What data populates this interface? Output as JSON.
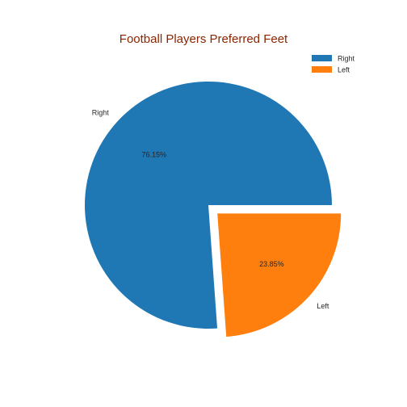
{
  "chart_data": {
    "type": "pie",
    "title": "Football Players Preferred Feet",
    "title_color": "#8b2500",
    "categories": [
      "Right",
      "Left"
    ],
    "values": [
      76.15,
      23.85
    ],
    "value_labels": [
      "76.15%",
      "23.85%"
    ],
    "colors": [
      "#1f77b4",
      "#ff7f0e"
    ],
    "explode": [
      0,
      0.1
    ],
    "start_angle_deg": 0,
    "legend_position": "top-right"
  }
}
